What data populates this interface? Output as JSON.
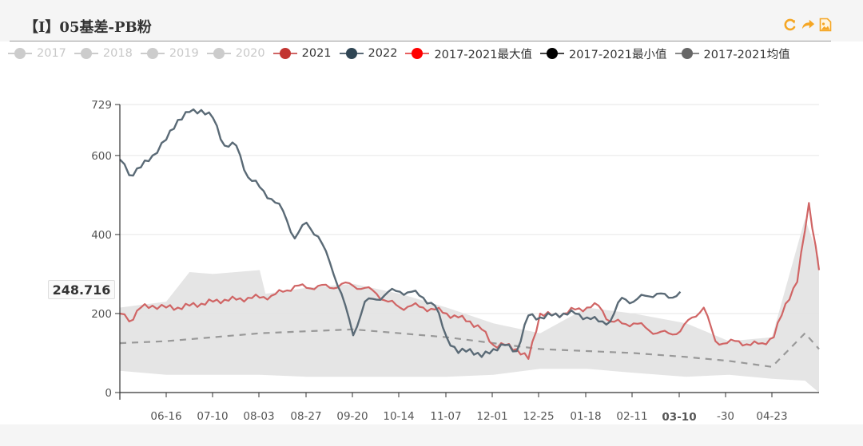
{
  "header": {
    "title": "【I】05基差-PB粉",
    "tools": [
      {
        "name": "refresh-icon",
        "glyph": "C"
      },
      {
        "name": "share-icon",
        "glyph": "➦"
      },
      {
        "name": "save-image-icon",
        "glyph": "▣"
      }
    ],
    "tool_color": "#f5a623"
  },
  "legend": [
    {
      "label": "2017",
      "color": "#cccccc",
      "text_color": "#c8c8c8",
      "active": false
    },
    {
      "label": "2018",
      "color": "#cccccc",
      "text_color": "#c8c8c8",
      "active": false
    },
    {
      "label": "2019",
      "color": "#cccccc",
      "text_color": "#c8c8c8",
      "active": false
    },
    {
      "label": "2020",
      "color": "#cccccc",
      "text_color": "#c8c8c8",
      "active": false
    },
    {
      "label": "2021",
      "color": "#c23531",
      "line_color": "#d06565",
      "text_color": "#333333",
      "active": true
    },
    {
      "label": "2022",
      "color": "#2f4554",
      "line_color": "#5a6a76",
      "text_color": "#333333",
      "active": true
    },
    {
      "label": "2017-2021最大值",
      "color": "#ff0000",
      "line_color": "#e86060",
      "text_color": "#333333",
      "active": true
    },
    {
      "label": "2017-2021最小值",
      "color": "#000000",
      "line_color": "#444444",
      "text_color": "#333333",
      "active": true
    },
    {
      "label": "2017-2021均值",
      "color": "#666666",
      "line_color": "#888888",
      "text_color": "#333333",
      "active": true
    }
  ],
  "axis_pointer": {
    "label": "248.716"
  },
  "chart_data": {
    "type": "line",
    "title": "【I】05基差-PB粉",
    "xlabel": "",
    "ylabel": "",
    "ylim": [
      0,
      729
    ],
    "yticks": [
      0,
      200,
      400,
      600,
      729
    ],
    "xticks": [
      "06-16",
      "07-10",
      "08-03",
      "08-27",
      "09-20",
      "10-14",
      "11-07",
      "12-01",
      "12-25",
      "01-18",
      "02-11",
      "03-10",
      "-30",
      "04-23"
    ],
    "highlighted_xtick": "03-10",
    "grid": true,
    "legend_position": "top",
    "axis_pointer_value": 248.716,
    "series": [
      {
        "name": "2022",
        "color": "#5a6a76",
        "x_dates": [
          "05-23",
          "05-28",
          "06-03",
          "06-09",
          "06-16",
          "06-22",
          "06-28",
          "07-04",
          "07-10",
          "07-16",
          "07-22",
          "07-28",
          "08-03",
          "08-09",
          "08-15",
          "08-21",
          "08-27",
          "09-02",
          "09-08",
          "09-14",
          "09-20",
          "09-26",
          "10-02",
          "10-08",
          "10-14",
          "10-20",
          "10-26",
          "11-01",
          "11-07",
          "11-13",
          "11-19",
          "11-25",
          "12-01",
          "12-07",
          "12-13",
          "12-19",
          "12-25",
          "12-31",
          "01-06",
          "01-12",
          "01-18",
          "01-24",
          "01-30",
          "02-05",
          "02-11",
          "02-17",
          "02-23",
          "03-01",
          "03-07"
        ],
        "values": [
          590,
          550,
          570,
          600,
          640,
          690,
          710,
          715,
          695,
          625,
          625,
          545,
          520,
          490,
          460,
          390,
          430,
          395,
          330,
          250,
          145,
          230,
          235,
          255,
          255,
          255,
          240,
          220,
          140,
          100,
          110,
          90,
          110,
          120,
          105,
          195,
          190,
          195,
          200,
          200,
          190,
          180,
          180,
          240,
          230,
          245,
          250,
          240,
          255
        ]
      },
      {
        "name": "2021",
        "color": "#d06565",
        "x_dates": [
          "05-23",
          "05-28",
          "06-03",
          "06-09",
          "06-16",
          "06-22",
          "06-28",
          "07-04",
          "07-10",
          "07-16",
          "07-22",
          "07-28",
          "08-03",
          "08-09",
          "08-15",
          "08-21",
          "08-27",
          "09-02",
          "09-08",
          "09-14",
          "09-20",
          "09-26",
          "10-02",
          "10-08",
          "10-14",
          "10-20",
          "10-26",
          "11-01",
          "11-07",
          "11-13",
          "11-19",
          "11-25",
          "12-01",
          "12-07",
          "12-13",
          "12-19",
          "12-25",
          "12-31",
          "01-06",
          "01-12",
          "01-18",
          "01-24",
          "01-30",
          "02-05",
          "02-11",
          "02-17",
          "02-23",
          "03-01",
          "03-07",
          "03-13",
          "03-19",
          "03-25",
          "03-31",
          "04-06",
          "04-12",
          "04-18",
          "04-24",
          "04-30",
          "05-06",
          "05-12",
          "05-18"
        ],
        "values": [
          200,
          180,
          215,
          220,
          215,
          215,
          220,
          225,
          230,
          235,
          235,
          240,
          240,
          245,
          255,
          270,
          265,
          270,
          265,
          275,
          270,
          265,
          250,
          230,
          215,
          220,
          215,
          210,
          200,
          190,
          180,
          160,
          120,
          120,
          110,
          85,
          200,
          195,
          200,
          210,
          215,
          220,
          180,
          175,
          175,
          165,
          150,
          150,
          155,
          190,
          215,
          130,
          125,
          130,
          120,
          125,
          140,
          225,
          280,
          480,
          310
        ]
      },
      {
        "name": "2017-2021均值",
        "color": "#999999",
        "dashed": true,
        "x_dates": [
          "05-23",
          "06-16",
          "07-10",
          "08-03",
          "08-27",
          "09-20",
          "10-14",
          "11-07",
          "12-01",
          "12-25",
          "01-18",
          "02-11",
          "03-10",
          "04-01",
          "04-23",
          "05-10",
          "05-18"
        ],
        "values": [
          125,
          130,
          140,
          150,
          155,
          160,
          150,
          140,
          125,
          110,
          105,
          100,
          90,
          80,
          65,
          150,
          110
        ]
      },
      {
        "name": "2017-2021最大值",
        "area_upper": true,
        "color": "#e6e6e6",
        "x_dates": [
          "05-23",
          "06-16",
          "06-28",
          "07-10",
          "08-03",
          "08-06",
          "08-27",
          "09-20",
          "10-14",
          "11-07",
          "12-01",
          "12-25",
          "01-18",
          "02-11",
          "03-10",
          "04-01",
          "04-23",
          "05-10",
          "05-18"
        ],
        "values": [
          215,
          230,
          305,
          300,
          310,
          250,
          265,
          275,
          250,
          215,
          175,
          150,
          215,
          200,
          175,
          130,
          140,
          440,
          340
        ]
      },
      {
        "name": "2017-2021最小值",
        "area_lower": true,
        "color": "#e6e6e6",
        "x_dates": [
          "05-23",
          "06-16",
          "07-10",
          "08-03",
          "08-27",
          "09-20",
          "10-14",
          "11-07",
          "12-01",
          "12-25",
          "01-18",
          "02-11",
          "03-10",
          "04-01",
          "04-23",
          "05-10",
          "05-18"
        ],
        "values": [
          55,
          45,
          45,
          45,
          40,
          40,
          40,
          40,
          45,
          60,
          60,
          50,
          40,
          45,
          35,
          30,
          0
        ]
      }
    ]
  }
}
